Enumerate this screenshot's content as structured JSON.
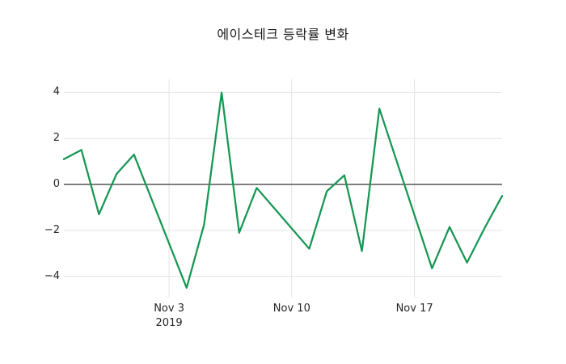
{
  "page": {
    "background": "#ffffff"
  },
  "chart_data": {
    "type": "line",
    "title": "에이스테크 등락률 변화",
    "xlabel": "",
    "ylabel": "",
    "legend": false,
    "grid": true,
    "grid_color": "#e3e3e3",
    "zero_line": {
      "value": 0,
      "color": "#333333"
    },
    "xlim": [
      0,
      25
    ],
    "ylim": [
      -4.93,
      4.58
    ],
    "y_ticks": [
      {
        "value": 4,
        "label": "4"
      },
      {
        "value": 2,
        "label": "2"
      },
      {
        "value": 0,
        "label": "0"
      },
      {
        "value": -2,
        "label": "−2"
      },
      {
        "value": -4,
        "label": "−4"
      }
    ],
    "x_ticks": [
      {
        "day": 6,
        "label": "Nov 3",
        "sublabel": "2019"
      },
      {
        "day": 13,
        "label": "Nov 10",
        "sublabel": ""
      },
      {
        "day": 20,
        "label": "Nov 17",
        "sublabel": ""
      }
    ],
    "series": [
      {
        "color": "#179653",
        "x_dates": [
          "2019-10-28",
          "2019-10-29",
          "2019-10-30",
          "2019-10-31",
          "2019-11-01",
          "2019-11-04",
          "2019-11-05",
          "2019-11-06",
          "2019-11-07",
          "2019-11-08",
          "2019-11-11",
          "2019-11-12",
          "2019-11-13",
          "2019-11-14",
          "2019-11-15",
          "2019-11-18",
          "2019-11-19",
          "2019-11-20",
          "2019-11-21",
          "2019-11-22"
        ],
        "day_offsets": [
          0,
          1,
          2,
          3,
          4,
          7,
          8,
          9,
          10,
          11,
          14,
          15,
          16,
          17,
          18,
          21,
          22,
          23,
          24,
          25
        ],
        "values": [
          1.1,
          1.5,
          -1.3,
          0.45,
          1.3,
          -4.5,
          -1.75,
          4.0,
          -2.1,
          -0.15,
          -2.8,
          -0.3,
          0.4,
          -2.9,
          3.3,
          -3.65,
          -1.85,
          -3.4,
          -1.9,
          -0.5
        ]
      }
    ]
  }
}
